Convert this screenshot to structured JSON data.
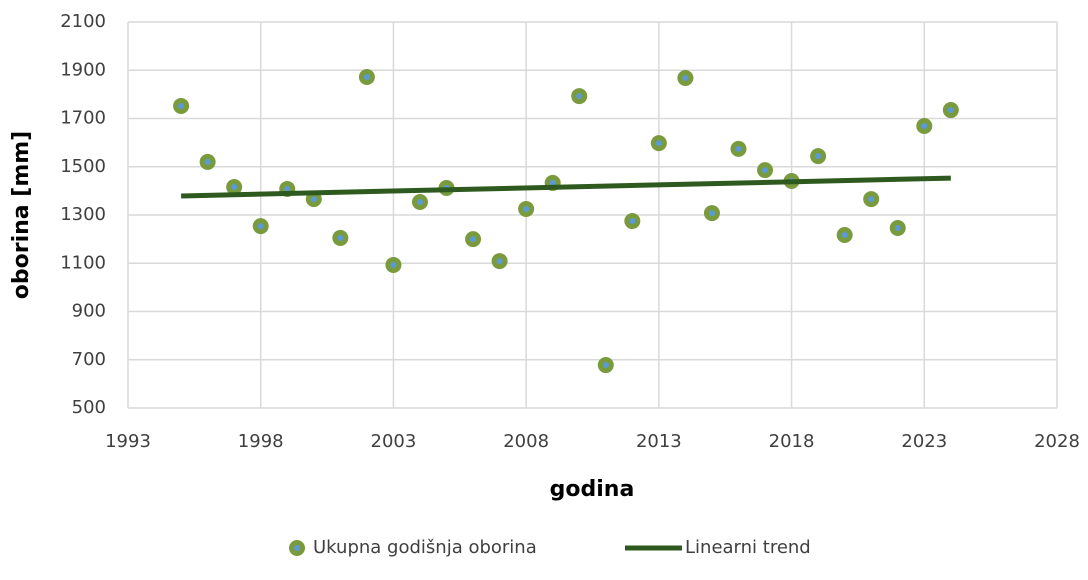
{
  "chart_data": {
    "type": "scatter",
    "xlabel": "godina",
    "ylabel": "oborina [mm]",
    "xlim": [
      1993,
      2028
    ],
    "xticks": [
      1993,
      1998,
      2003,
      2008,
      2013,
      2018,
      2023,
      2028
    ],
    "ylim": [
      500,
      2100
    ],
    "yticks": [
      500,
      700,
      900,
      1100,
      1300,
      1500,
      1700,
      1900,
      2100
    ],
    "grid": true,
    "legend": "bottom",
    "series": [
      {
        "name": "Ukupna godišnja oborina",
        "type": "scatter",
        "color": "#7a9a3e",
        "center_color": "#5b9bd5",
        "x": [
          1995,
          1996,
          1997,
          1998,
          1999,
          2000,
          2001,
          2002,
          2003,
          2004,
          2005,
          2006,
          2007,
          2008,
          2009,
          2010,
          2011,
          2012,
          2013,
          2014,
          2015,
          2016,
          2017,
          2018,
          2019,
          2020,
          2021,
          2022,
          2023,
          2024
        ],
        "values": [
          1752,
          1520,
          1416,
          1254,
          1408,
          1366,
          1205,
          1872,
          1093,
          1354,
          1412,
          1200,
          1109,
          1325,
          1433,
          1793,
          678,
          1275,
          1598,
          1868,
          1308,
          1574,
          1486,
          1441,
          1544,
          1217,
          1366,
          1246,
          1669,
          1735
        ]
      },
      {
        "name": "Linearni trend",
        "type": "line",
        "color": "#2e5a1f",
        "x": [
          1995,
          2024
        ],
        "values": [
          1379,
          1453
        ]
      }
    ]
  }
}
